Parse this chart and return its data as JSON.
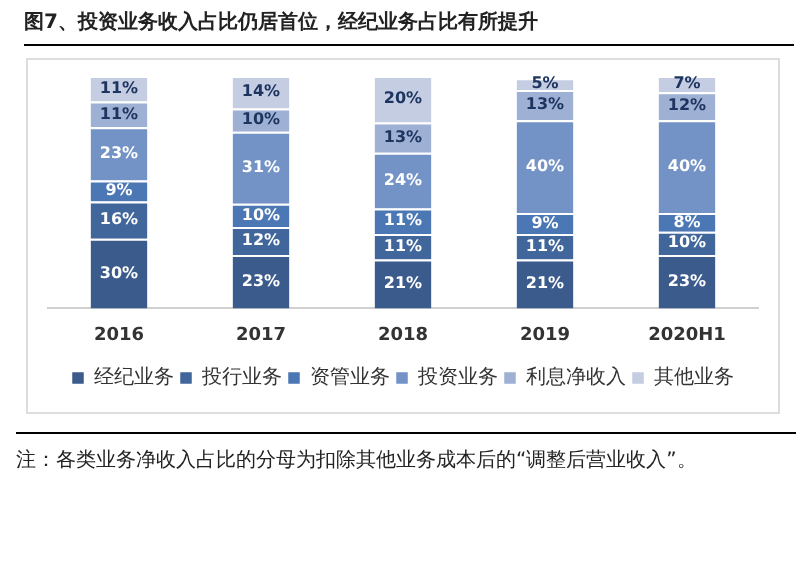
{
  "chart_data": {
    "type": "bar",
    "title": "图7、投资业务收入占比仍居首位，经纪业务占比有所提升",
    "categories": [
      "2016",
      "2017",
      "2018",
      "2019",
      "2020H1"
    ],
    "stacked": true,
    "legend": "bottom",
    "grid": false,
    "tick_labels": "x",
    "series": [
      {
        "name": "经纪业务",
        "color": "#3b5b8c",
        "values": [
          30,
          23,
          21,
          21,
          23
        ],
        "value_labels": [
          "30%",
          "23%",
          "21%",
          "21%",
          "23%"
        ]
      },
      {
        "name": "投行业务",
        "color": "#41669c",
        "values": [
          16,
          12,
          11,
          11,
          10
        ],
        "value_labels": [
          "16%",
          "12%",
          "11%",
          "11%",
          "10%"
        ]
      },
      {
        "name": "资管业务",
        "color": "#4b77b4",
        "values": [
          9,
          10,
          11,
          9,
          8
        ],
        "value_labels": [
          "9%",
          "10%",
          "11%",
          "9%",
          "8%"
        ]
      },
      {
        "name": "投资业务",
        "color": "#7393c6",
        "values": [
          23,
          31,
          24,
          40,
          40
        ],
        "value_labels": [
          "23%",
          "31%",
          "24%",
          "40%",
          "40%"
        ]
      },
      {
        "name": "利息净收入",
        "color": "#9eb0d4",
        "values": [
          11,
          10,
          13,
          13,
          12
        ],
        "value_labels": [
          "11%",
          "10%",
          "13%",
          "13%",
          "12%"
        ]
      },
      {
        "name": "其他业务",
        "color": "#c4cde2",
        "values": [
          11,
          14,
          20,
          5,
          7
        ],
        "value_labels": [
          "11%",
          "14%",
          "20%",
          "5%",
          "7%"
        ]
      }
    ],
    "annotations": [
      "注：各类业务净收入占比的分母为扣除其他业务成本后的“调整后营业收入”。"
    ]
  }
}
